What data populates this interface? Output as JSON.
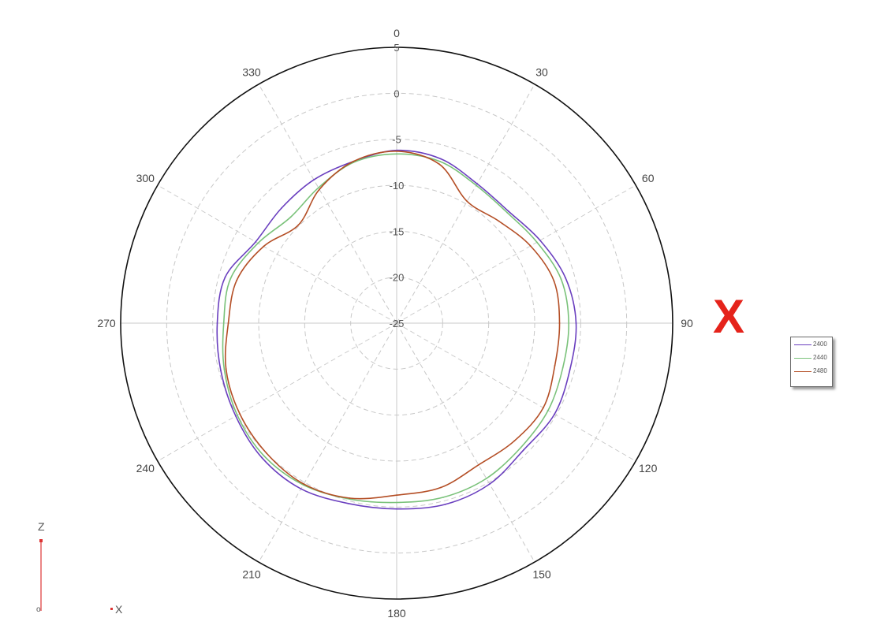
{
  "chart_data": {
    "type": "polar-line",
    "angle_ticks": [
      "0",
      "30",
      "60",
      "90",
      "120",
      "150",
      "180",
      "210",
      "240",
      "270",
      "300",
      "330"
    ],
    "radial_ticks": [
      "5",
      "0",
      "-5",
      "-10",
      "-15",
      "-20",
      "-25"
    ],
    "rlim": [
      -25,
      5
    ],
    "grid": true,
    "legend_position": "right",
    "series": [
      {
        "name": "2400",
        "color": "#6a3fbf",
        "theta": [
          0,
          15,
          30,
          45,
          60,
          75,
          90,
          105,
          120,
          135,
          150,
          165,
          180,
          195,
          210,
          225,
          240,
          255,
          270,
          285,
          300,
          315,
          330,
          345
        ],
        "r": [
          -6.2,
          -6.5,
          -7.5,
          -7.8,
          -7.0,
          -6.0,
          -5.5,
          -5.5,
          -5.2,
          -5.5,
          -4.8,
          -4.6,
          -4.8,
          -4.7,
          -4.2,
          -4.3,
          -4.8,
          -5.2,
          -5.5,
          -5.7,
          -7.3,
          -7.3,
          -7.0,
          -6.8
        ]
      },
      {
        "name": "2440",
        "color": "#7ac27a",
        "theta": [
          0,
          15,
          30,
          45,
          60,
          75,
          90,
          105,
          120,
          135,
          150,
          165,
          180,
          195,
          210,
          225,
          240,
          255,
          270,
          285,
          300,
          315,
          330,
          345
        ],
        "r": [
          -6.6,
          -6.8,
          -7.7,
          -8.0,
          -7.4,
          -6.5,
          -6.3,
          -6.3,
          -6.0,
          -5.9,
          -5.5,
          -5.4,
          -5.5,
          -5.2,
          -4.7,
          -4.6,
          -5.0,
          -5.6,
          -6.2,
          -6.3,
          -7.6,
          -8.7,
          -8.0,
          -6.9
        ]
      },
      {
        "name": "2480",
        "color": "#b44e25",
        "theta": [
          0,
          15,
          30,
          45,
          60,
          75,
          90,
          105,
          120,
          135,
          150,
          165,
          180,
          195,
          210,
          225,
          240,
          255,
          270,
          285,
          300,
          315,
          330,
          345
        ],
        "r": [
          -6.3,
          -7.1,
          -9.7,
          -9.3,
          -8.2,
          -7.3,
          -7.3,
          -7.2,
          -6.6,
          -6.9,
          -7.2,
          -6.5,
          -6.3,
          -5.3,
          -4.8,
          -5.0,
          -5.3,
          -5.8,
          -6.7,
          -7.0,
          -8.3,
          -9.9,
          -8.2,
          -6.8
        ]
      }
    ]
  },
  "annotation": {
    "mark": "X",
    "mark_color": "#e5231b"
  },
  "axis_indicator": {
    "z_label": "Z",
    "x_label": "X",
    "origin_label": "o"
  }
}
